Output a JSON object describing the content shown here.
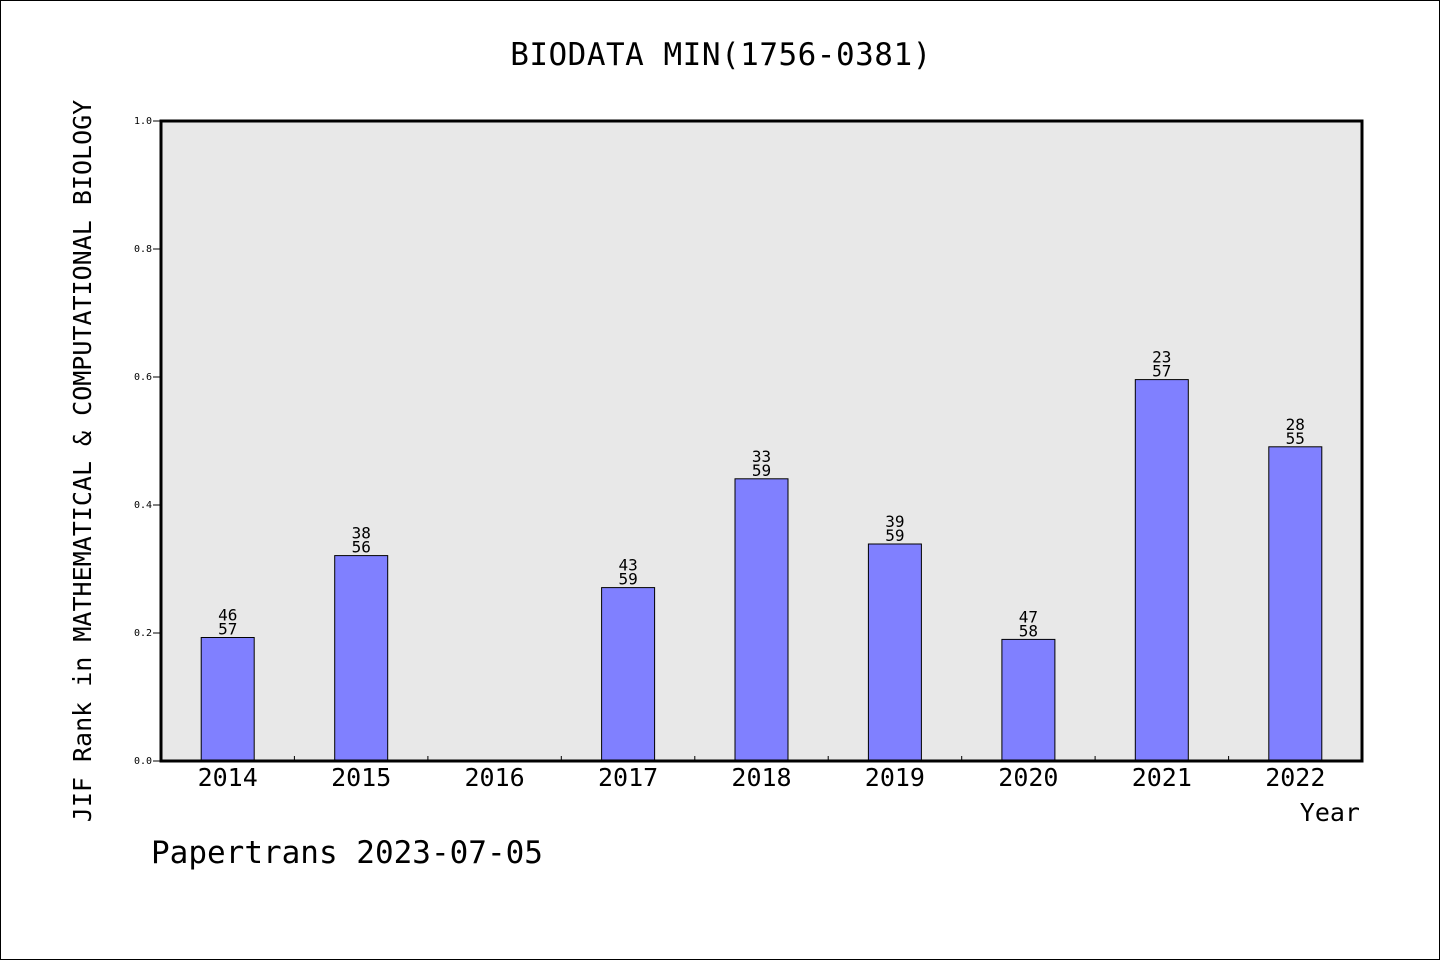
{
  "chart_data": {
    "type": "bar",
    "title": "BIODATA MIN(1756-0381)",
    "xlabel": "Year",
    "ylabel": "JIF Rank in MATHEMATICAL & COMPUTATIONAL BIOLOGY",
    "ylim": [
      0,
      1.0
    ],
    "yticks": [
      "0.0",
      "0.2",
      "0.4",
      "0.6",
      "0.8",
      "1.0"
    ],
    "categories": [
      "2014",
      "2015",
      "2016",
      "2017",
      "2018",
      "2019",
      "2020",
      "2021",
      "2022"
    ],
    "values": [
      0.193,
      0.321,
      null,
      0.271,
      0.441,
      0.339,
      0.19,
      0.596,
      0.491
    ],
    "rank": [
      "46",
      "38",
      "",
      "43",
      "33",
      "39",
      "47",
      "23",
      "28"
    ],
    "total": [
      "57",
      "56",
      "",
      "59",
      "59",
      "59",
      "58",
      "57",
      "55"
    ],
    "bar_color": "#8080ff",
    "plot_background": "#e8e8e8",
    "grid": false
  },
  "footer": "Papertrans 2023-07-05"
}
